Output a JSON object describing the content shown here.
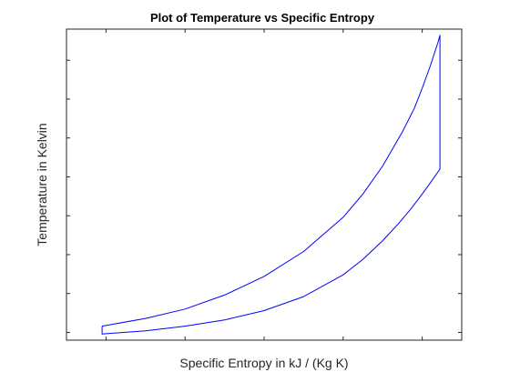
{
  "chart_data": {
    "type": "line",
    "title": "Plot of Temperature vs Specific Entropy",
    "xlabel": "Specific Entropy in kJ / (Kg K)",
    "ylabel": "Temperature in Kelvin",
    "xlim": [
      0,
      1
    ],
    "ylim": [
      0,
      1
    ],
    "xticks": [
      0.1,
      0.3,
      0.5,
      0.7,
      0.9
    ],
    "yticks": [
      0.025,
      0.15,
      0.275,
      0.4,
      0.525,
      0.65,
      0.775,
      0.9
    ],
    "show_tick_labels": false,
    "grid": false,
    "legend": false,
    "series_color": "#0000ff",
    "series": [
      {
        "x": [
          0.09,
          0.2,
          0.3,
          0.4,
          0.5,
          0.6,
          0.7,
          0.75,
          0.8,
          0.85,
          0.88,
          0.9,
          0.92,
          0.94,
          0.945,
          0.945,
          0.92,
          0.9,
          0.87,
          0.84,
          0.8,
          0.75,
          0.7,
          0.6,
          0.5,
          0.4,
          0.3,
          0.2,
          0.09,
          0.09
        ],
        "y": [
          0.045,
          0.07,
          0.1,
          0.145,
          0.205,
          0.285,
          0.395,
          0.47,
          0.56,
          0.67,
          0.745,
          0.81,
          0.88,
          0.958,
          0.98,
          0.55,
          0.505,
          0.47,
          0.42,
          0.375,
          0.32,
          0.26,
          0.21,
          0.14,
          0.095,
          0.065,
          0.045,
          0.03,
          0.02,
          0.045
        ]
      }
    ]
  }
}
